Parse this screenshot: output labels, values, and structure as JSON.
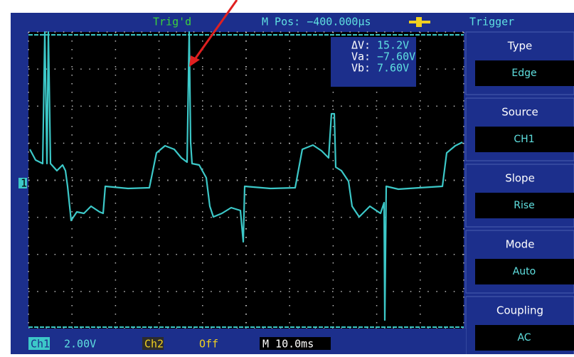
{
  "status": {
    "trigger_state": "Trig'd",
    "position": "M Pos: −400.000µs"
  },
  "cursor_readout": {
    "delta_label": "ΔV:",
    "delta_value": "15.2V",
    "a_label": "Va:",
    "a_value": "−7.60V",
    "b_label": "Vb:",
    "b_value": "7.60V"
  },
  "channel_marker": "1",
  "menu": {
    "title": "Trigger",
    "items": [
      {
        "label": "Type",
        "value": "Edge"
      },
      {
        "label": "Source",
        "value": "CH1"
      },
      {
        "label": "Slope",
        "value": "Rise"
      },
      {
        "label": "Mode",
        "value": "Auto"
      },
      {
        "label": "Coupling",
        "value": "AC"
      }
    ]
  },
  "footer": {
    "ch1_label": "Ch1",
    "ch1_scale": "2.00V",
    "ch2_label": "Ch2",
    "ch2_state": "Off",
    "timebase": "M 10.0ms"
  }
}
